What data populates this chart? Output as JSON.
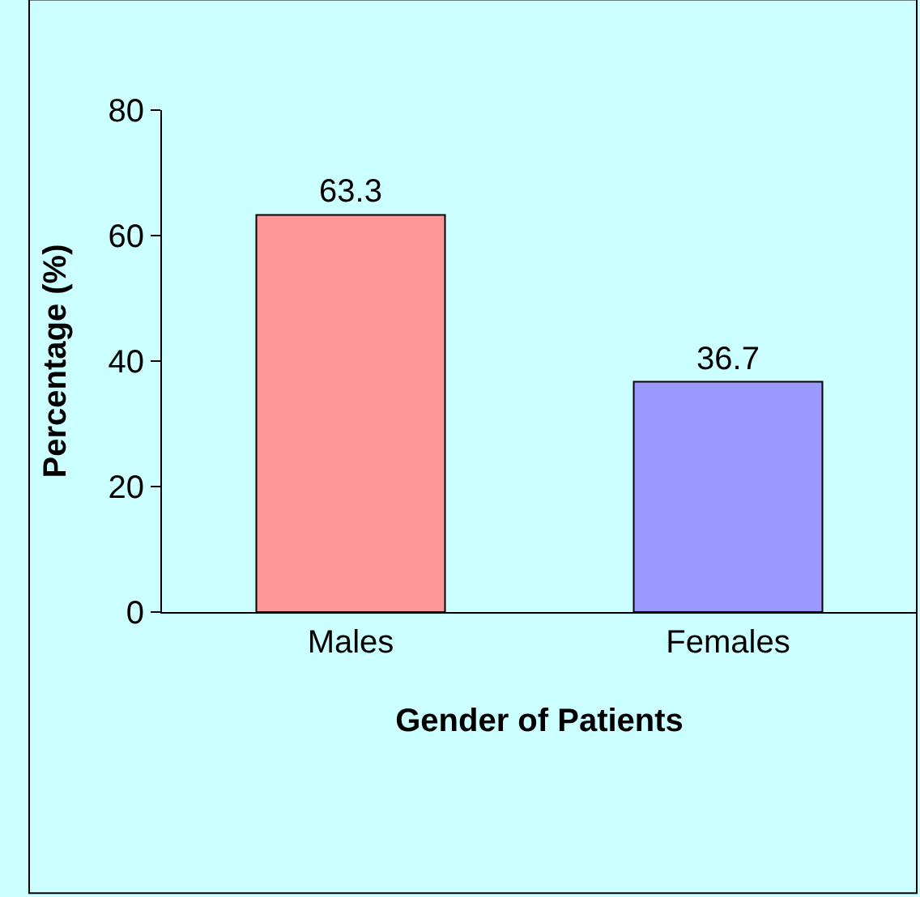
{
  "chart_data": {
    "type": "bar",
    "xlabel": "Gender of Patients",
    "ylabel": "Percentage (%)",
    "categories": [
      "Males",
      "Females"
    ],
    "values": [
      63.3,
      36.7
    ],
    "colors": [
      "#ff9999",
      "#9999ff"
    ],
    "ylim": [
      0,
      80
    ],
    "yticks": [
      0,
      20,
      40,
      60,
      80
    ],
    "data_labels": true
  }
}
